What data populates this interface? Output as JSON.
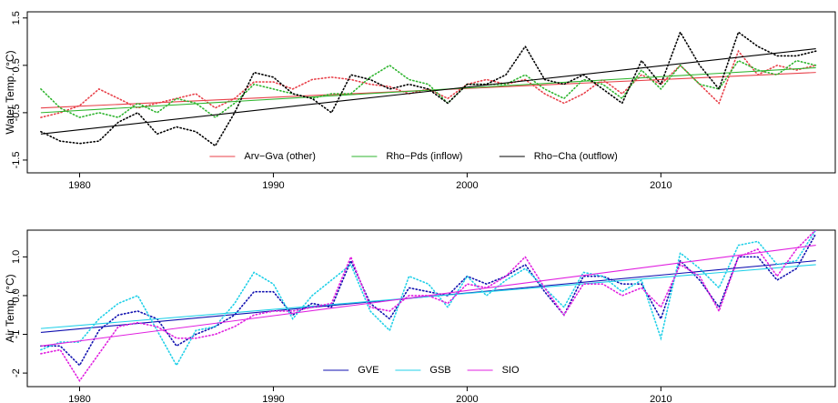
{
  "chart_data": [
    {
      "type": "line",
      "y_label": "Water Temp. (°C)",
      "x": [
        1978,
        1979,
        1980,
        1981,
        1982,
        1983,
        1984,
        1985,
        1986,
        1987,
        1988,
        1989,
        1990,
        1991,
        1992,
        1993,
        1994,
        1995,
        1996,
        1997,
        1998,
        1999,
        2000,
        2001,
        2002,
        2003,
        2004,
        2005,
        2006,
        2007,
        2008,
        2009,
        2010,
        2011,
        2012,
        2013,
        2014,
        2015,
        2016,
        2017,
        2018
      ],
      "xlim": [
        1977.3,
        2019
      ],
      "xticks": [
        1980,
        1990,
        2000,
        2010
      ],
      "ylim": [
        -1.77,
        1.63
      ],
      "yticks": [
        -1.5,
        -0.5,
        0.5,
        1.5
      ],
      "legend": "bottom",
      "series": [
        {
          "name": "Arv−Gva (other)",
          "color": "#e8414a",
          "values": [
            -0.6,
            -0.5,
            -0.35,
            0.0,
            -0.2,
            -0.4,
            -0.3,
            -0.2,
            -0.1,
            -0.4,
            -0.2,
            0.15,
            0.15,
            0.0,
            0.2,
            0.25,
            0.2,
            0.1,
            0.05,
            -0.1,
            0.0,
            -0.2,
            0.1,
            0.2,
            0.1,
            0.2,
            -0.1,
            -0.3,
            -0.1,
            0.2,
            -0.1,
            0.3,
            0.1,
            0.5,
            0.1,
            -0.3,
            0.8,
            0.3,
            0.5,
            0.4,
            0.5
          ],
          "trend": [
            -0.4,
            0.35
          ]
        },
        {
          "name": "Rho−Pds (inflow)",
          "color": "#2fb52f",
          "values": [
            0.0,
            -0.4,
            -0.6,
            -0.5,
            -0.6,
            -0.3,
            -0.5,
            -0.2,
            -0.3,
            -0.6,
            -0.3,
            0.1,
            0.0,
            -0.1,
            -0.2,
            -0.1,
            -0.1,
            0.25,
            0.5,
            0.2,
            0.1,
            -0.3,
            0.1,
            0.1,
            0.1,
            0.3,
            0.0,
            -0.2,
            0.2,
            0.1,
            -0.2,
            0.4,
            0.0,
            0.5,
            0.1,
            0.0,
            0.6,
            0.4,
            0.3,
            0.6,
            0.5
          ],
          "trend": [
            -0.5,
            0.45
          ]
        },
        {
          "name": "Rho−Cha (outflow)",
          "color": "#000000",
          "values": [
            -0.9,
            -1.1,
            -1.15,
            -1.1,
            -0.7,
            -0.5,
            -0.95,
            -0.8,
            -0.9,
            -1.2,
            -0.5,
            0.35,
            0.25,
            -0.1,
            -0.2,
            -0.5,
            0.3,
            0.2,
            0.0,
            0.1,
            0.0,
            -0.3,
            0.1,
            0.1,
            0.3,
            0.9,
            0.2,
            0.1,
            0.3,
            0.0,
            -0.3,
            0.6,
            0.1,
            1.2,
            0.5,
            0.0,
            1.2,
            0.9,
            0.7,
            0.7,
            0.8
          ],
          "trend": [
            -0.95,
            0.85
          ]
        }
      ]
    },
    {
      "type": "line",
      "y_label": "Air Temp. (°C)",
      "x": [
        1978,
        1979,
        1980,
        1981,
        1982,
        1983,
        1984,
        1985,
        1986,
        1987,
        1988,
        1989,
        1990,
        1991,
        1992,
        1993,
        1994,
        1995,
        1996,
        1997,
        1998,
        1999,
        2000,
        2001,
        2002,
        2003,
        2004,
        2005,
        2006,
        2007,
        2008,
        2009,
        2010,
        2011,
        2012,
        2013,
        2014,
        2015,
        2016,
        2017,
        2018
      ],
      "xlim": [
        1977.3,
        2019
      ],
      "xticks": [
        1980,
        1990,
        2000,
        2010
      ],
      "ylim": [
        -2.35,
        1.69
      ],
      "yticks": [
        -2,
        -1,
        {
          "value": 0,
          "label": "0.0"
        },
        {
          "value": 1,
          "label": "1.0"
        }
      ],
      "legend": "bottom",
      "series": [
        {
          "name": "GVE",
          "color": "#1010b0",
          "values": [
            -1.3,
            -1.3,
            -1.8,
            -0.9,
            -0.5,
            -0.4,
            -0.6,
            -1.3,
            -1.0,
            -0.8,
            -0.5,
            0.1,
            0.1,
            -0.5,
            -0.2,
            -0.3,
            0.9,
            -0.2,
            -0.6,
            0.2,
            0.1,
            0.0,
            0.5,
            0.3,
            0.5,
            0.8,
            0.1,
            -0.5,
            0.5,
            0.5,
            0.3,
            0.3,
            -0.6,
            0.9,
            0.4,
            -0.3,
            1.0,
            1.0,
            0.4,
            0.7,
            1.6
          ],
          "trend": [
            -0.95,
            0.9
          ]
        },
        {
          "name": "GSB",
          "color": "#20d0e8",
          "values": [
            -1.4,
            -1.2,
            -1.2,
            -0.6,
            -0.2,
            0.0,
            -0.9,
            -1.8,
            -0.9,
            -0.8,
            -0.2,
            0.6,
            0.3,
            -0.6,
            0.0,
            0.4,
            0.8,
            -0.4,
            -0.9,
            0.5,
            0.3,
            -0.3,
            0.5,
            0.0,
            0.4,
            0.7,
            0.2,
            -0.3,
            0.6,
            0.5,
            0.1,
            0.4,
            -1.1,
            1.1,
            0.7,
            0.2,
            1.3,
            1.4,
            0.8,
            0.9,
            1.7
          ],
          "trend": [
            -0.85,
            0.8
          ]
        },
        {
          "name": "SIO",
          "color": "#e020e0",
          "values": [
            -1.5,
            -1.4,
            -2.2,
            -1.5,
            -0.8,
            -0.7,
            -0.8,
            -1.1,
            -1.1,
            -1.0,
            -0.8,
            -0.5,
            -0.4,
            -0.4,
            -0.3,
            -0.2,
            1.0,
            -0.3,
            -0.4,
            0.0,
            0.0,
            -0.2,
            0.3,
            0.2,
            0.5,
            1.0,
            0.2,
            -0.5,
            0.3,
            0.3,
            0.0,
            0.2,
            -0.3,
            0.8,
            0.5,
            -0.4,
            1.0,
            1.2,
            0.5,
            1.2,
            1.7
          ],
          "trend": [
            -1.3,
            1.3
          ]
        }
      ]
    }
  ]
}
